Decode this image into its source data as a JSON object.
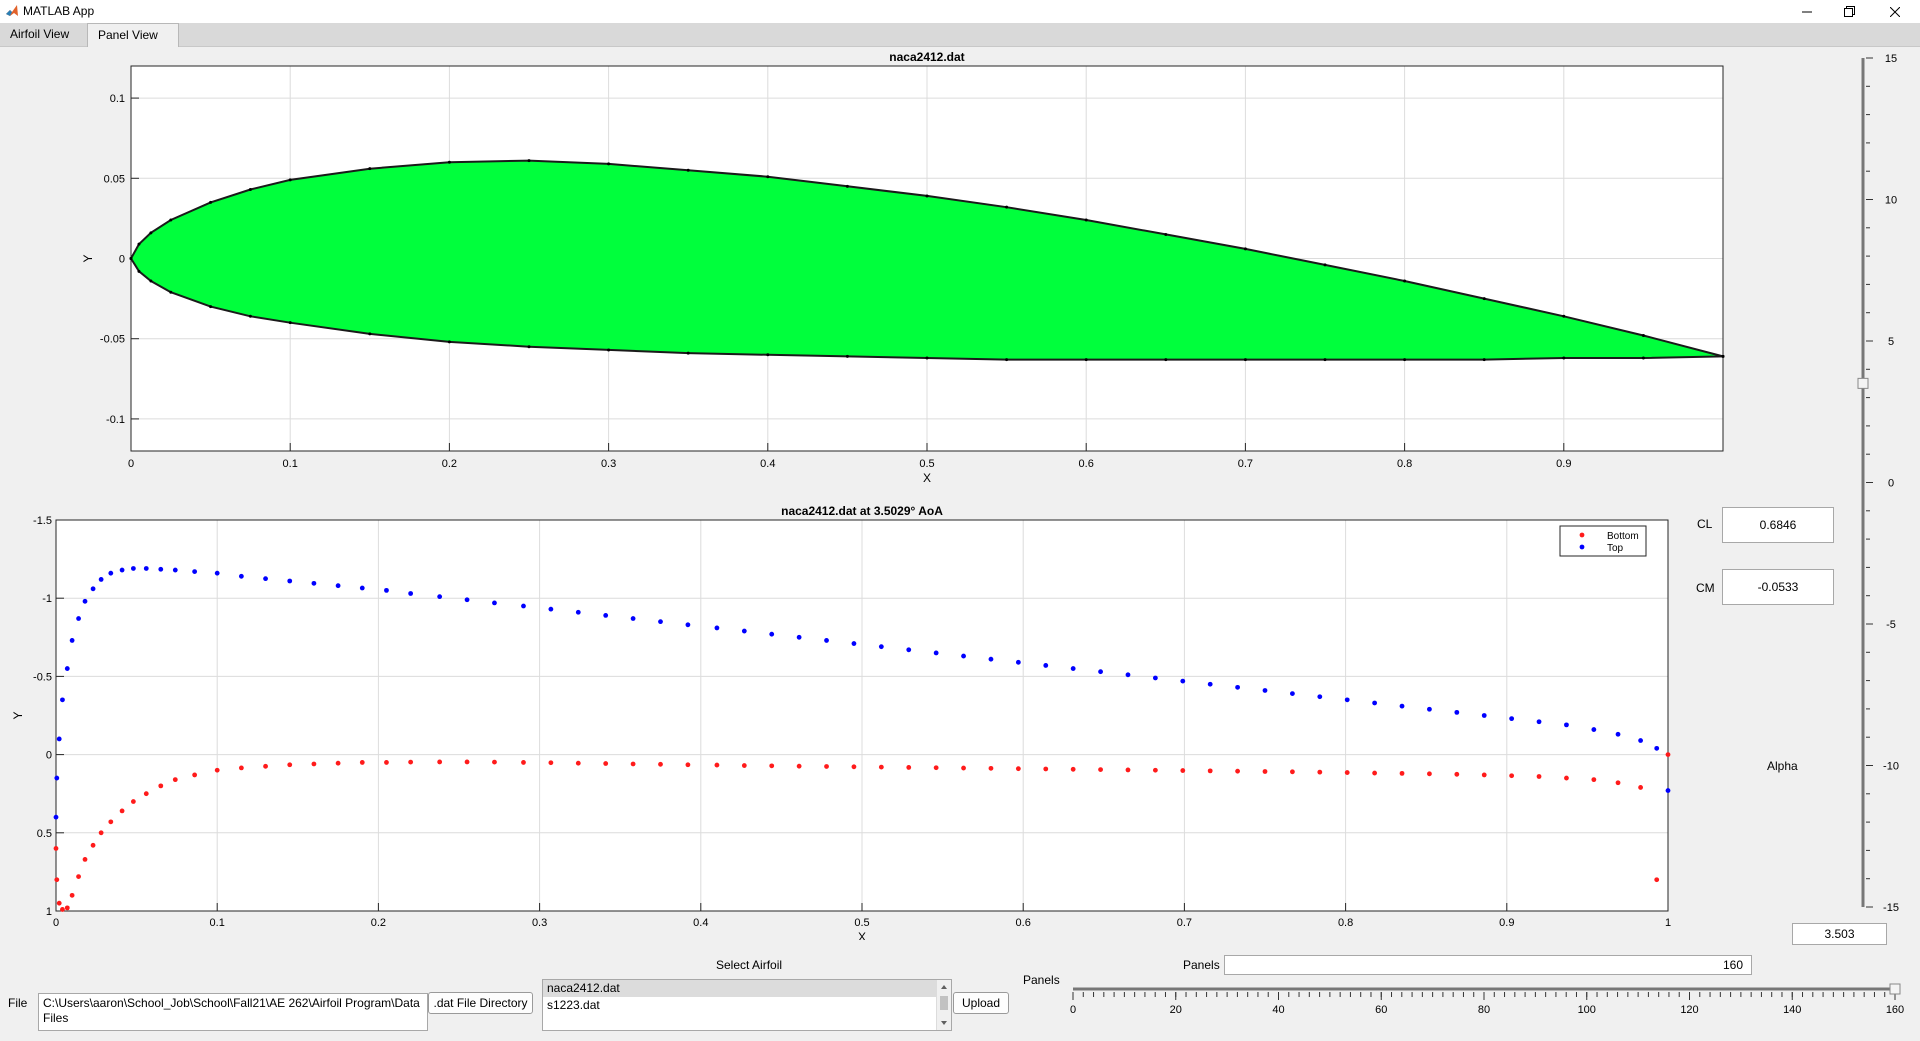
{
  "window": {
    "title": "MATLAB App",
    "minimize_icon": "minimize-icon",
    "restore_icon": "restore-icon"
  },
  "tabs": [
    {
      "label": "Airfoil View"
    },
    {
      "label": "Panel View"
    }
  ],
  "active_tab": 1,
  "colors": {
    "airfoil_fill": "#00ff3c",
    "bottom_series": "#ff1b1b",
    "top_series": "#0000ff"
  },
  "chart_data": [
    {
      "type": "area",
      "title": "naca2412.dat",
      "xlabel": "X",
      "ylabel": "Y",
      "xlim": [
        0,
        1
      ],
      "ylim": [
        -0.12,
        0.12
      ],
      "xticks": [
        0,
        0.1,
        0.2,
        0.3,
        0.4,
        0.5,
        0.6,
        0.7,
        0.8,
        0.9
      ],
      "yticks": [
        -0.1,
        -0.05,
        0,
        0.05,
        0.1
      ],
      "grid": true,
      "series": [
        {
          "x": [
            1.0,
            0.95,
            0.9,
            0.85,
            0.8,
            0.75,
            0.7,
            0.65,
            0.6,
            0.55,
            0.5,
            0.45,
            0.4,
            0.35,
            0.3,
            0.25,
            0.2,
            0.15,
            0.1,
            0.075,
            0.05,
            0.025,
            0.0125,
            0.005,
            0.0
          ],
          "y": [
            -0.061,
            -0.048,
            -0.036,
            -0.025,
            -0.014,
            -0.004,
            0.006,
            0.015,
            0.024,
            0.032,
            0.039,
            0.045,
            0.051,
            0.055,
            0.059,
            0.061,
            0.06,
            0.056,
            0.049,
            0.043,
            0.035,
            0.024,
            0.016,
            0.009,
            0.0
          ]
        },
        {
          "x": [
            0.0,
            0.005,
            0.0125,
            0.025,
            0.05,
            0.075,
            0.1,
            0.15,
            0.2,
            0.25,
            0.3,
            0.35,
            0.4,
            0.45,
            0.5,
            0.55,
            0.6,
            0.65,
            0.7,
            0.75,
            0.8,
            0.85,
            0.9,
            0.95,
            1.0
          ],
          "y": [
            0.0,
            -0.008,
            -0.014,
            -0.021,
            -0.03,
            -0.036,
            -0.04,
            -0.047,
            -0.052,
            -0.055,
            -0.057,
            -0.059,
            -0.06,
            -0.061,
            -0.062,
            -0.063,
            -0.063,
            -0.063,
            -0.063,
            -0.063,
            -0.063,
            -0.063,
            -0.062,
            -0.062,
            -0.061
          ]
        }
      ]
    },
    {
      "type": "scatter",
      "title": "naca2412.dat at 3.5029° AoA",
      "xlabel": "X",
      "ylabel": "Y",
      "xlim": [
        0,
        1
      ],
      "ylim": [
        -1.5,
        1
      ],
      "y_reversed": true,
      "xticks": [
        0,
        0.1,
        0.2,
        0.3,
        0.4,
        0.5,
        0.6,
        0.7,
        0.8,
        0.9,
        1
      ],
      "yticks": [
        -1.5,
        -1,
        -0.5,
        0,
        0.5,
        1
      ],
      "grid": true,
      "legend": "top-right",
      "series": [
        {
          "name": "Bottom",
          "x": [
            0.0,
            0.0005,
            0.002,
            0.004,
            0.007,
            0.01,
            0.014,
            0.018,
            0.023,
            0.028,
            0.034,
            0.041,
            0.048,
            0.056,
            0.065,
            0.074,
            0.086,
            0.1,
            0.115,
            0.13,
            0.145,
            0.16,
            0.175,
            0.19,
            0.205,
            0.22,
            0.238,
            0.255,
            0.272,
            0.29,
            0.307,
            0.324,
            0.341,
            0.358,
            0.375,
            0.392,
            0.41,
            0.427,
            0.444,
            0.461,
            0.478,
            0.495,
            0.512,
            0.529,
            0.546,
            0.563,
            0.58,
            0.597,
            0.614,
            0.631,
            0.648,
            0.665,
            0.682,
            0.699,
            0.716,
            0.733,
            0.75,
            0.767,
            0.784,
            0.801,
            0.818,
            0.835,
            0.852,
            0.869,
            0.886,
            0.903,
            0.92,
            0.937,
            0.954,
            0.969,
            0.983,
            0.993,
            1.0
          ],
          "y": [
            0.6,
            0.8,
            0.95,
            0.99,
            0.98,
            0.9,
            0.78,
            0.67,
            0.58,
            0.5,
            0.43,
            0.36,
            0.3,
            0.25,
            0.2,
            0.16,
            0.13,
            0.1,
            0.085,
            0.075,
            0.065,
            0.06,
            0.055,
            0.05,
            0.05,
            0.048,
            0.047,
            0.047,
            0.048,
            0.05,
            0.052,
            0.055,
            0.057,
            0.06,
            0.062,
            0.065,
            0.067,
            0.07,
            0.072,
            0.074,
            0.076,
            0.078,
            0.08,
            0.082,
            0.084,
            0.086,
            0.088,
            0.09,
            0.092,
            0.094,
            0.096,
            0.098,
            0.1,
            0.102,
            0.104,
            0.106,
            0.108,
            0.11,
            0.112,
            0.115,
            0.118,
            0.12,
            0.123,
            0.126,
            0.13,
            0.135,
            0.14,
            0.15,
            0.16,
            0.18,
            0.21,
            0.8,
            0.0
          ]
        },
        {
          "name": "Top",
          "x": [
            0.0,
            0.0005,
            0.002,
            0.004,
            0.007,
            0.01,
            0.014,
            0.018,
            0.023,
            0.028,
            0.034,
            0.041,
            0.048,
            0.056,
            0.065,
            0.074,
            0.086,
            0.1,
            0.115,
            0.13,
            0.145,
            0.16,
            0.175,
            0.19,
            0.205,
            0.22,
            0.238,
            0.255,
            0.272,
            0.29,
            0.307,
            0.324,
            0.341,
            0.358,
            0.375,
            0.392,
            0.41,
            0.427,
            0.444,
            0.461,
            0.478,
            0.495,
            0.512,
            0.529,
            0.546,
            0.563,
            0.58,
            0.597,
            0.614,
            0.631,
            0.648,
            0.665,
            0.682,
            0.699,
            0.716,
            0.733,
            0.75,
            0.767,
            0.784,
            0.801,
            0.818,
            0.835,
            0.852,
            0.869,
            0.886,
            0.903,
            0.92,
            0.937,
            0.954,
            0.969,
            0.983,
            0.993,
            1.0
          ],
          "y": [
            0.4,
            0.15,
            -0.1,
            -0.35,
            -0.55,
            -0.73,
            -0.87,
            -0.98,
            -1.06,
            -1.12,
            -1.16,
            -1.18,
            -1.19,
            -1.19,
            -1.185,
            -1.18,
            -1.17,
            -1.16,
            -1.14,
            -1.125,
            -1.11,
            -1.095,
            -1.08,
            -1.065,
            -1.05,
            -1.03,
            -1.01,
            -0.99,
            -0.97,
            -0.95,
            -0.93,
            -0.91,
            -0.89,
            -0.87,
            -0.85,
            -0.83,
            -0.81,
            -0.79,
            -0.77,
            -0.75,
            -0.73,
            -0.71,
            -0.69,
            -0.67,
            -0.65,
            -0.63,
            -0.61,
            -0.59,
            -0.57,
            -0.55,
            -0.53,
            -0.51,
            -0.49,
            -0.47,
            -0.45,
            -0.43,
            -0.41,
            -0.39,
            -0.37,
            -0.35,
            -0.33,
            -0.31,
            -0.29,
            -0.27,
            -0.25,
            -0.23,
            -0.21,
            -0.19,
            -0.16,
            -0.13,
            -0.09,
            -0.04,
            0.23
          ]
        }
      ]
    }
  ],
  "results": {
    "cl_label": "CL",
    "cl_value": "0.6846",
    "cm_label": "CM",
    "cm_value": "-0.0533",
    "alpha_label": "Alpha",
    "alpha_value": "3.503"
  },
  "alpha_slider": {
    "ticks": [
      15,
      10,
      5,
      0,
      -5,
      -10,
      -15
    ],
    "min": -15,
    "max": 15,
    "value": 3.503
  },
  "controls": {
    "file_label": "File",
    "file_path": "C:\\Users\\aaron\\School_Job\\School\\Fall21\\AE 262\\Airfoil Program\\Data Files",
    "dir_button": ".dat File Directory",
    "select_label": "Select Airfoil",
    "airfoils": [
      "naca2412.dat",
      "s1223.dat"
    ],
    "selected_airfoil": 0,
    "upload_button": "Upload",
    "panels_label": "Panels",
    "panels_value": "160",
    "panel_slider": {
      "ticks": [
        0,
        20,
        40,
        60,
        80,
        100,
        120,
        140,
        160
      ],
      "min": 0,
      "max": 160,
      "value": 160
    }
  }
}
